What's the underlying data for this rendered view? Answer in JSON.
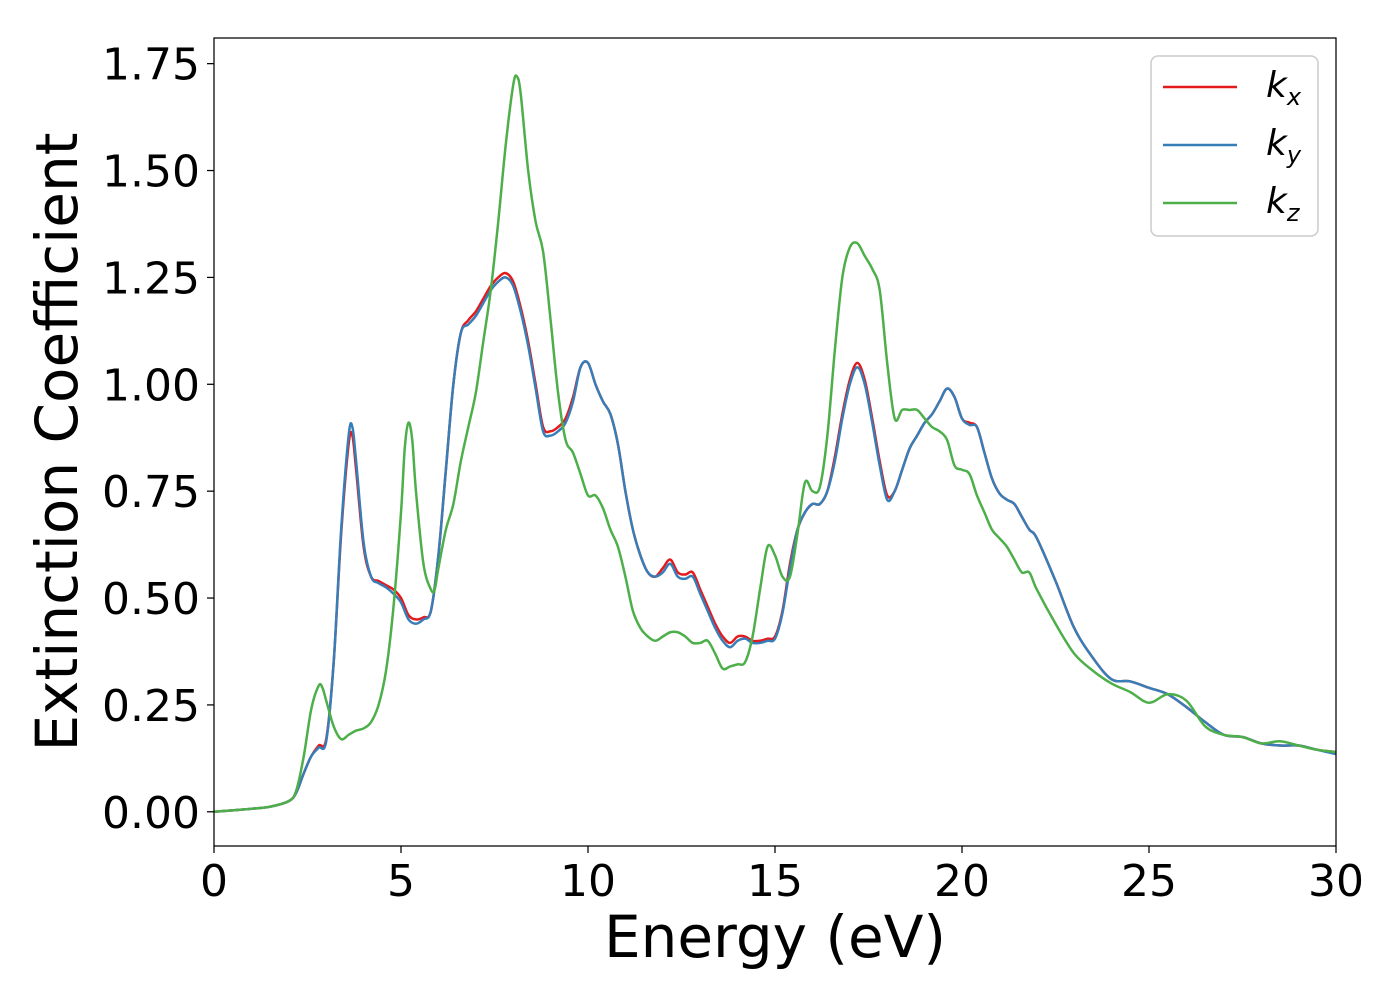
{
  "chart_data": {
    "type": "line",
    "title": "",
    "xlabel": "Energy (eV)",
    "ylabel": "Extinction Coefficient",
    "xlim": [
      0,
      30
    ],
    "ylim": [
      -0.08,
      1.81
    ],
    "xticks": [
      0,
      5,
      10,
      15,
      20,
      25,
      30
    ],
    "xtick_labels": [
      "0",
      "5",
      "10",
      "15",
      "20",
      "25",
      "30"
    ],
    "yticks": [
      0,
      0.25,
      0.5,
      0.75,
      1.0,
      1.25,
      1.5,
      1.75
    ],
    "ytick_labels": [
      "0.00",
      "0.25",
      "0.50",
      "0.75",
      "1.00",
      "1.25",
      "1.50",
      "1.75"
    ],
    "grid": false,
    "legend_position": "top-right",
    "series": [
      {
        "name": "k",
        "subscript": "x",
        "color": "#e41a1c",
        "x": [
          0,
          1,
          1.5,
          2,
          2.2,
          2.4,
          2.6,
          2.8,
          3.0,
          3.2,
          3.4,
          3.6,
          3.7,
          3.8,
          4.0,
          4.2,
          4.4,
          4.6,
          4.8,
          5.0,
          5.2,
          5.4,
          5.6,
          5.8,
          6.0,
          6.2,
          6.4,
          6.6,
          6.8,
          7.0,
          7.2,
          7.4,
          7.6,
          7.8,
          8.0,
          8.2,
          8.4,
          8.6,
          8.8,
          9.0,
          9.2,
          9.4,
          9.6,
          9.8,
          10.0,
          10.2,
          10.4,
          10.6,
          10.8,
          11.0,
          11.2,
          11.4,
          11.6,
          11.8,
          12.0,
          12.2,
          12.4,
          12.6,
          12.8,
          13.0,
          13.2,
          13.4,
          13.6,
          13.8,
          14.0,
          14.2,
          14.4,
          14.6,
          14.8,
          15.0,
          15.2,
          15.4,
          15.6,
          15.8,
          16.0,
          16.2,
          16.4,
          16.6,
          16.8,
          17.0,
          17.2,
          17.4,
          17.6,
          17.8,
          18.0,
          18.2,
          18.4,
          18.6,
          18.8,
          19.0,
          19.2,
          19.4,
          19.6,
          19.8,
          20.0,
          20.2,
          20.4,
          20.6,
          20.8,
          21.0,
          21.2,
          21.4,
          21.6,
          21.8,
          22.0,
          22.5,
          23.0,
          23.5,
          24.0,
          24.5,
          25.0,
          25.5,
          26.0,
          26.5,
          27.0,
          27.5,
          28.0,
          28.5,
          29.0,
          29.5,
          30.0
        ],
        "y": [
          0.0,
          0.007,
          0.012,
          0.025,
          0.045,
          0.09,
          0.13,
          0.155,
          0.17,
          0.35,
          0.65,
          0.86,
          0.88,
          0.8,
          0.62,
          0.55,
          0.54,
          0.53,
          0.52,
          0.5,
          0.46,
          0.45,
          0.455,
          0.47,
          0.6,
          0.8,
          1.0,
          1.12,
          1.15,
          1.17,
          1.2,
          1.23,
          1.25,
          1.26,
          1.24,
          1.18,
          1.1,
          1.0,
          0.9,
          0.89,
          0.9,
          0.92,
          0.97,
          1.04,
          1.05,
          1.0,
          0.96,
          0.93,
          0.86,
          0.75,
          0.66,
          0.6,
          0.56,
          0.55,
          0.57,
          0.59,
          0.56,
          0.555,
          0.56,
          0.52,
          0.48,
          0.44,
          0.41,
          0.395,
          0.41,
          0.41,
          0.4,
          0.4,
          0.405,
          0.41,
          0.47,
          0.58,
          0.66,
          0.7,
          0.72,
          0.72,
          0.75,
          0.83,
          0.93,
          1.01,
          1.05,
          1.01,
          0.92,
          0.82,
          0.74,
          0.75,
          0.8,
          0.85,
          0.88,
          0.91,
          0.93,
          0.96,
          0.99,
          0.97,
          0.92,
          0.91,
          0.9,
          0.84,
          0.78,
          0.745,
          0.73,
          0.72,
          0.69,
          0.66,
          0.64,
          0.54,
          0.43,
          0.36,
          0.31,
          0.305,
          0.29,
          0.275,
          0.245,
          0.21,
          0.18,
          0.175,
          0.16,
          0.155,
          0.155,
          0.145,
          0.14
        ]
      },
      {
        "name": "k",
        "subscript": "y",
        "color": "#377eb8",
        "x": [
          0,
          1,
          1.5,
          2,
          2.2,
          2.4,
          2.6,
          2.8,
          3.0,
          3.2,
          3.4,
          3.6,
          3.7,
          3.8,
          4.0,
          4.2,
          4.4,
          4.6,
          4.8,
          5.0,
          5.2,
          5.4,
          5.6,
          5.8,
          6.0,
          6.2,
          6.4,
          6.6,
          6.8,
          7.0,
          7.2,
          7.4,
          7.6,
          7.8,
          8.0,
          8.2,
          8.4,
          8.6,
          8.8,
          9.0,
          9.2,
          9.4,
          9.6,
          9.8,
          10.0,
          10.2,
          10.4,
          10.6,
          10.8,
          11.0,
          11.2,
          11.4,
          11.6,
          11.8,
          12.0,
          12.2,
          12.4,
          12.6,
          12.8,
          13.0,
          13.2,
          13.4,
          13.6,
          13.8,
          14.0,
          14.2,
          14.4,
          14.6,
          14.8,
          15.0,
          15.2,
          15.4,
          15.6,
          15.8,
          16.0,
          16.2,
          16.4,
          16.6,
          16.8,
          17.0,
          17.2,
          17.4,
          17.6,
          17.8,
          18.0,
          18.2,
          18.4,
          18.6,
          18.8,
          19.0,
          19.2,
          19.4,
          19.6,
          19.8,
          20.0,
          20.2,
          20.4,
          20.6,
          20.8,
          21.0,
          21.2,
          21.4,
          21.6,
          21.8,
          22.0,
          22.5,
          23.0,
          23.5,
          24.0,
          24.5,
          25.0,
          25.5,
          26.0,
          26.5,
          27.0,
          27.5,
          28.0,
          28.5,
          29.0,
          29.5,
          30.0
        ],
        "y": [
          0.0,
          0.007,
          0.012,
          0.025,
          0.045,
          0.09,
          0.13,
          0.15,
          0.165,
          0.35,
          0.66,
          0.88,
          0.9,
          0.82,
          0.63,
          0.55,
          0.535,
          0.525,
          0.51,
          0.49,
          0.45,
          0.44,
          0.45,
          0.47,
          0.6,
          0.8,
          1.0,
          1.12,
          1.14,
          1.16,
          1.19,
          1.22,
          1.24,
          1.25,
          1.23,
          1.17,
          1.09,
          0.99,
          0.89,
          0.88,
          0.89,
          0.91,
          0.96,
          1.04,
          1.05,
          1.0,
          0.96,
          0.93,
          0.86,
          0.75,
          0.66,
          0.6,
          0.56,
          0.55,
          0.56,
          0.58,
          0.55,
          0.545,
          0.55,
          0.51,
          0.47,
          0.43,
          0.4,
          0.385,
          0.4,
          0.405,
          0.395,
          0.395,
          0.4,
          0.405,
          0.465,
          0.57,
          0.66,
          0.7,
          0.72,
          0.72,
          0.75,
          0.82,
          0.92,
          1.0,
          1.04,
          1.0,
          0.91,
          0.81,
          0.73,
          0.75,
          0.8,
          0.85,
          0.88,
          0.91,
          0.93,
          0.96,
          0.99,
          0.97,
          0.92,
          0.905,
          0.9,
          0.84,
          0.78,
          0.745,
          0.73,
          0.72,
          0.69,
          0.66,
          0.64,
          0.54,
          0.43,
          0.36,
          0.31,
          0.305,
          0.29,
          0.275,
          0.245,
          0.21,
          0.18,
          0.175,
          0.16,
          0.155,
          0.155,
          0.145,
          0.135
        ]
      },
      {
        "name": "k",
        "subscript": "z",
        "color": "#4daf4a",
        "x": [
          0,
          1,
          1.5,
          2,
          2.2,
          2.4,
          2.6,
          2.8,
          2.9,
          3.0,
          3.2,
          3.4,
          3.6,
          3.8,
          4.0,
          4.2,
          4.4,
          4.6,
          4.8,
          5.0,
          5.1,
          5.2,
          5.3,
          5.4,
          5.6,
          5.8,
          5.9,
          6.0,
          6.2,
          6.4,
          6.6,
          6.8,
          7.0,
          7.2,
          7.4,
          7.6,
          7.8,
          8.0,
          8.1,
          8.2,
          8.4,
          8.6,
          8.8,
          9.0,
          9.2,
          9.4,
          9.6,
          9.8,
          10.0,
          10.2,
          10.4,
          10.6,
          10.8,
          11.0,
          11.2,
          11.4,
          11.6,
          11.8,
          12.0,
          12.2,
          12.4,
          12.6,
          12.8,
          13.0,
          13.2,
          13.4,
          13.6,
          13.8,
          14.0,
          14.2,
          14.4,
          14.6,
          14.8,
          15.0,
          15.2,
          15.4,
          15.6,
          15.8,
          16.0,
          16.2,
          16.4,
          16.6,
          16.8,
          17.0,
          17.2,
          17.4,
          17.6,
          17.8,
          18.0,
          18.2,
          18.4,
          18.6,
          18.8,
          19.0,
          19.2,
          19.4,
          19.6,
          19.8,
          20.0,
          20.2,
          20.4,
          20.6,
          20.8,
          21.0,
          21.2,
          21.4,
          21.6,
          21.8,
          22.0,
          22.5,
          23.0,
          23.5,
          24.0,
          24.5,
          25.0,
          25.5,
          26.0,
          26.5,
          27.0,
          27.5,
          28.0,
          28.5,
          29.0,
          29.5,
          30.0
        ],
        "y": [
          0.0,
          0.007,
          0.012,
          0.025,
          0.05,
          0.13,
          0.24,
          0.295,
          0.29,
          0.26,
          0.2,
          0.17,
          0.18,
          0.19,
          0.195,
          0.21,
          0.25,
          0.33,
          0.48,
          0.7,
          0.85,
          0.91,
          0.87,
          0.75,
          0.58,
          0.52,
          0.52,
          0.57,
          0.66,
          0.72,
          0.82,
          0.9,
          0.98,
          1.1,
          1.22,
          1.38,
          1.56,
          1.7,
          1.72,
          1.68,
          1.5,
          1.38,
          1.31,
          1.15,
          0.98,
          0.87,
          0.84,
          0.79,
          0.74,
          0.74,
          0.71,
          0.66,
          0.62,
          0.55,
          0.47,
          0.43,
          0.41,
          0.4,
          0.41,
          0.42,
          0.42,
          0.41,
          0.395,
          0.395,
          0.4,
          0.37,
          0.335,
          0.34,
          0.345,
          0.35,
          0.41,
          0.52,
          0.62,
          0.6,
          0.55,
          0.55,
          0.65,
          0.77,
          0.75,
          0.76,
          0.88,
          1.08,
          1.25,
          1.32,
          1.33,
          1.3,
          1.27,
          1.22,
          1.05,
          0.92,
          0.94,
          0.94,
          0.94,
          0.92,
          0.9,
          0.89,
          0.87,
          0.81,
          0.8,
          0.79,
          0.74,
          0.7,
          0.66,
          0.64,
          0.62,
          0.59,
          0.56,
          0.56,
          0.52,
          0.44,
          0.37,
          0.33,
          0.3,
          0.28,
          0.255,
          0.275,
          0.26,
          0.2,
          0.18,
          0.175,
          0.16,
          0.165,
          0.155,
          0.145,
          0.14
        ]
      }
    ]
  }
}
